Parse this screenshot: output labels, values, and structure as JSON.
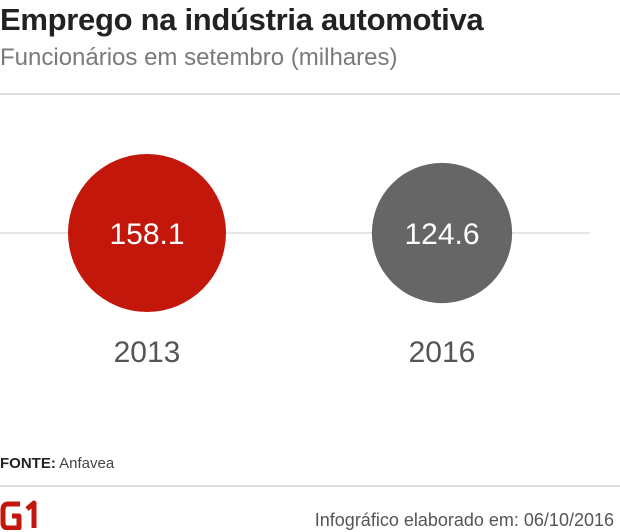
{
  "header": {
    "title": "Emprego na indústria automotiva",
    "subtitle": "Funcionários em setembro (milhares)"
  },
  "chart_data": {
    "type": "bubble",
    "title": "Emprego na indústria automotiva",
    "subtitle": "Funcionários em setembro (milhares)",
    "categories": [
      "2013",
      "2016"
    ],
    "values": [
      158.1,
      124.6
    ],
    "value_labels": [
      "158.1",
      "124.6"
    ],
    "colors": [
      "#c4170c",
      "#666666"
    ]
  },
  "footer": {
    "source_label": "FONTE:",
    "source_value": "Anfavea",
    "logo_text": "G1",
    "credit": "Infográfico elaborado em: 06/10/2016"
  },
  "colors": {
    "accent": "#c4170c",
    "secondary": "#666666",
    "title": "#222222",
    "subtitle": "#7a7a7a"
  }
}
